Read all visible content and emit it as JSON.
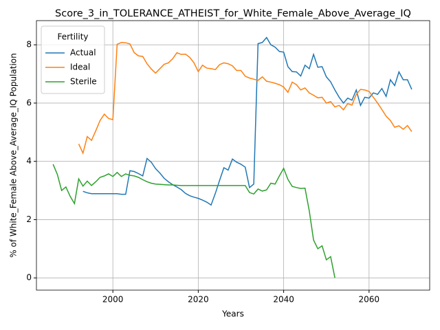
{
  "chart_data": {
    "type": "line",
    "title": "Score_3_in_TOLERANCE_ATHEIST_for_White_Female_Above_Average_IQ",
    "xlabel": "Years",
    "ylabel": "% of White_Female Above_Average_IQ Population",
    "legend_title": "Fertility",
    "legend": "upper left",
    "grid": true,
    "xlim": [
      1982.1,
      2074.2
    ],
    "ylim": [
      -0.42,
      8.83
    ],
    "xticks": [
      2000,
      2020,
      2040,
      2060
    ],
    "yticks": [
      0,
      2,
      4,
      6,
      8
    ],
    "x": [
      1986,
      1987,
      1988,
      1989,
      1990,
      1991,
      1992,
      1993,
      1994,
      1995,
      1996,
      1997,
      1998,
      1999,
      2000,
      2001,
      2002,
      2003,
      2004,
      2005,
      2006,
      2007,
      2008,
      2009,
      2010,
      2011,
      2012,
      2013,
      2014,
      2015,
      2016,
      2017,
      2018,
      2019,
      2020,
      2021,
      2022,
      2023,
      2024,
      2025,
      2026,
      2027,
      2028,
      2029,
      2030,
      2031,
      2032,
      2033,
      2034,
      2035,
      2036,
      2037,
      2038,
      2039,
      2040,
      2041,
      2042,
      2043,
      2044,
      2045,
      2046,
      2047,
      2048,
      2049,
      2050,
      2051,
      2052,
      2053,
      2054,
      2055,
      2056,
      2057,
      2058,
      2059,
      2060,
      2061,
      2062,
      2063,
      2064,
      2065,
      2066,
      2067,
      2068,
      2069,
      2070
    ],
    "series": [
      {
        "name": "Actual",
        "color": "#1f77b4",
        "values": [
          null,
          null,
          null,
          null,
          null,
          null,
          null,
          2.97,
          2.92,
          2.89,
          2.89,
          2.89,
          2.89,
          2.89,
          2.89,
          2.89,
          2.87,
          2.87,
          3.68,
          3.65,
          3.58,
          3.5,
          4.1,
          3.97,
          3.75,
          3.6,
          3.42,
          3.3,
          3.2,
          3.12,
          3.03,
          2.9,
          2.82,
          2.77,
          2.73,
          2.67,
          2.6,
          2.5,
          2.9,
          3.35,
          3.78,
          3.7,
          4.08,
          3.97,
          3.9,
          3.8,
          3.1,
          3.22,
          8.04,
          8.08,
          8.25,
          8.0,
          7.92,
          7.77,
          7.75,
          7.25,
          7.08,
          7.07,
          6.93,
          7.3,
          7.18,
          7.67,
          7.23,
          7.25,
          6.9,
          6.73,
          6.45,
          6.2,
          6.0,
          6.17,
          6.1,
          6.45,
          5.92,
          6.2,
          6.17,
          6.35,
          6.3,
          6.5,
          6.23,
          6.8,
          6.6,
          7.07,
          6.8,
          6.8,
          6.47
        ]
      },
      {
        "name": "Ideal",
        "color": "#ff7f0e",
        "values": [
          null,
          null,
          null,
          null,
          null,
          null,
          4.6,
          4.28,
          4.85,
          4.72,
          5.05,
          5.4,
          5.62,
          5.47,
          5.43,
          8.02,
          8.08,
          8.07,
          8.03,
          7.73,
          7.62,
          7.6,
          7.35,
          7.17,
          7.03,
          7.18,
          7.33,
          7.38,
          7.52,
          7.73,
          7.67,
          7.68,
          7.57,
          7.38,
          7.08,
          7.3,
          7.2,
          7.18,
          7.15,
          7.32,
          7.38,
          7.35,
          7.28,
          7.12,
          7.12,
          6.92,
          6.86,
          6.82,
          6.78,
          6.9,
          6.75,
          6.72,
          6.68,
          6.63,
          6.55,
          6.37,
          6.72,
          6.63,
          6.45,
          6.52,
          6.35,
          6.27,
          6.18,
          6.2,
          6.0,
          6.05,
          5.87,
          5.92,
          5.77,
          5.98,
          5.93,
          6.3,
          6.47,
          6.45,
          6.4,
          6.2,
          6.0,
          5.78,
          5.55,
          5.4,
          5.17,
          5.22,
          5.1,
          5.23,
          5.02
        ]
      },
      {
        "name": "Sterile",
        "color": "#2ca02c",
        "values": [
          3.9,
          3.55,
          3.0,
          3.12,
          2.8,
          2.55,
          3.4,
          3.15,
          3.32,
          3.17,
          3.3,
          3.45,
          3.5,
          3.57,
          3.48,
          3.62,
          3.48,
          3.57,
          3.52,
          3.5,
          3.45,
          3.37,
          3.3,
          3.25,
          3.22,
          3.21,
          3.2,
          3.19,
          3.19,
          3.18,
          3.17,
          3.17,
          3.17,
          3.17,
          3.17,
          3.17,
          3.17,
          3.17,
          3.17,
          3.17,
          3.17,
          3.17,
          3.17,
          3.17,
          3.17,
          3.17,
          2.93,
          2.88,
          3.05,
          2.98,
          3.02,
          3.25,
          3.22,
          3.5,
          3.76,
          3.38,
          3.14,
          3.1,
          3.07,
          3.08,
          2.3,
          1.3,
          1.0,
          1.1,
          0.62,
          0.73,
          0.0,
          null,
          null,
          null,
          null,
          null,
          null,
          null,
          null,
          null,
          null,
          null,
          null,
          null,
          null,
          null,
          null,
          null,
          null
        ]
      }
    ]
  }
}
